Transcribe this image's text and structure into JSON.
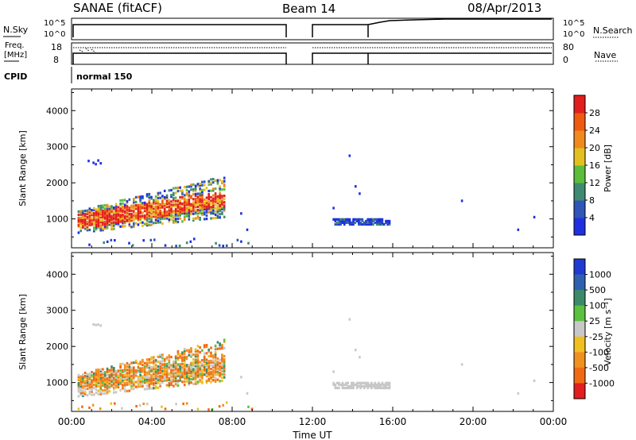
{
  "header": {
    "station": "SANAE (fitACF)",
    "beam": "Beam 14",
    "date": "08/Apr/2013"
  },
  "panels": {
    "nsky": {
      "left_label": "N.Sky",
      "left_ticks": [
        "10^5",
        "10^0"
      ],
      "right_ticks": [
        "10^5",
        "10^0"
      ],
      "right_label": "N.Search"
    },
    "freq": {
      "left_label_1": "Freq.",
      "left_label_2": "[MHz]",
      "left_ticks": [
        "18",
        "8"
      ],
      "right_ticks": [
        "80",
        "0"
      ],
      "right_label": "Nave"
    },
    "cpid": {
      "label": "CPID",
      "value": "normal 150"
    }
  },
  "chart_data": [
    {
      "type": "heatmap",
      "quantity": "Power",
      "ylabel": "Slant Range [km]",
      "ylim": [
        200,
        4600
      ],
      "y_ticks": [
        "1000",
        "2000",
        "3000",
        "4000"
      ],
      "x_ticks": [
        "00:00",
        "04:00",
        "08:00",
        "12:00",
        "16:00",
        "20:00",
        "00:00"
      ],
      "colorbar_label": "Power [dB]",
      "colorbar_ticks": [
        "4",
        "8",
        "12",
        "16",
        "20",
        "24",
        "28"
      ],
      "colorbar_colors": [
        "#1f2fe0",
        "#2f55b8",
        "#3f8a70",
        "#5cbc3c",
        "#e3c020",
        "#f08a1c",
        "#ee5a10",
        "#e21e1e"
      ],
      "regions": [
        {
          "t": [
            0.3,
            7.6
          ],
          "r": [
            600,
            2200
          ],
          "level": "high"
        },
        {
          "t": [
            13.0,
            15.8
          ],
          "r": [
            800,
            1050
          ],
          "level": "low"
        }
      ]
    },
    {
      "type": "heatmap",
      "quantity": "Velocity",
      "ylabel": "Slant Range [km]",
      "ylim": [
        200,
        4600
      ],
      "y_ticks": [
        "1000",
        "2000",
        "3000",
        "4000"
      ],
      "x_ticks": [
        "00:00",
        "04:00",
        "08:00",
        "12:00",
        "16:00",
        "20:00",
        "00:00"
      ],
      "xlabel": "Time UT",
      "colorbar_label": "Velocity [m s⁻¹]",
      "colorbar_ticks": [
        "1000",
        "500",
        "100",
        "25",
        "-25",
        "-100",
        "-500",
        "-1000"
      ],
      "colorbar_colors": [
        "#1f3ad0",
        "#2f60b0",
        "#3c8a6a",
        "#5cc040",
        "#c8c8c8",
        "#f0c020",
        "#f09020",
        "#f06a14",
        "#e21e1e"
      ],
      "regions": [
        {
          "t": [
            0.3,
            7.6
          ],
          "r": [
            600,
            2200
          ],
          "level": "negative"
        },
        {
          "t": [
            13.0,
            15.8
          ],
          "r": [
            800,
            1050
          ],
          "level": "ground"
        }
      ]
    }
  ]
}
